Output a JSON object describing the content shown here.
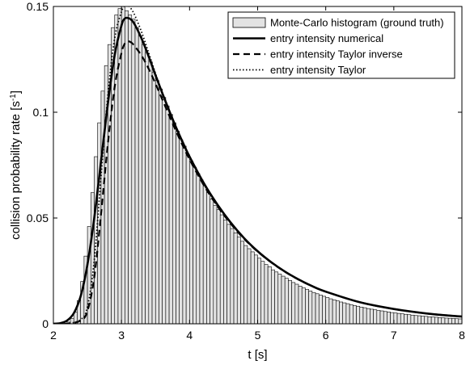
{
  "chart_data": {
    "type": "bar",
    "title": "",
    "xlabel": "t [s]",
    "ylabel": "collision probability rate [s",
    "ylabel_superscript": "-1",
    "ylabel_suffix": "]",
    "xlim": [
      2,
      8
    ],
    "ylim": [
      0,
      0.15
    ],
    "xticks": [
      2,
      3,
      4,
      5,
      6,
      7,
      8
    ],
    "xtick_labels": [
      "2",
      "3",
      "4",
      "5",
      "6",
      "7",
      "8"
    ],
    "yticks": [
      0,
      0.05,
      0.1,
      0.15
    ],
    "ytick_labels": [
      "0",
      "0.05",
      "0.1",
      "0.15"
    ],
    "grid": false,
    "legend_position": "top-right",
    "histogram": {
      "name": "Monte-Carlo histogram (ground truth)",
      "color": "#e3e3e3",
      "edge_color": "#000000",
      "bin_width": 0.05,
      "bin_starts": [
        2.2,
        2.25,
        2.3,
        2.35,
        2.4,
        2.45,
        2.5,
        2.55,
        2.6,
        2.65,
        2.7,
        2.75,
        2.8,
        2.85,
        2.9,
        2.95,
        3.0,
        3.05,
        3.1,
        3.15,
        3.2,
        3.25,
        3.3,
        3.35,
        3.4,
        3.45,
        3.5,
        3.55,
        3.6,
        3.65,
        3.7,
        3.75,
        3.8,
        3.85,
        3.9,
        3.95,
        4.0,
        4.05,
        4.1,
        4.15,
        4.2,
        4.25,
        4.3,
        4.35,
        4.4,
        4.45,
        4.5,
        4.55,
        4.6,
        4.65,
        4.7,
        4.75,
        4.8,
        4.85,
        4.9,
        4.95,
        5.0,
        5.05,
        5.1,
        5.15,
        5.2,
        5.25,
        5.3,
        5.35,
        5.4,
        5.45,
        5.5,
        5.55,
        5.6,
        5.65,
        5.7,
        5.75,
        5.8,
        5.85,
        5.9,
        5.95,
        6.0,
        6.05,
        6.1,
        6.15,
        6.2,
        6.25,
        6.3,
        6.35,
        6.4,
        6.45,
        6.5,
        6.55,
        6.6,
        6.65,
        6.7,
        6.75,
        6.8,
        6.85,
        6.9,
        6.95,
        7.0,
        7.05,
        7.1,
        7.15,
        7.2,
        7.25,
        7.3,
        7.35,
        7.4,
        7.45,
        7.5,
        7.55,
        7.6,
        7.65,
        7.7,
        7.75,
        7.8,
        7.85,
        7.9,
        7.95
      ],
      "values": [
        0.0008,
        0.0025,
        0.0055,
        0.011,
        0.02,
        0.032,
        0.046,
        0.062,
        0.079,
        0.095,
        0.11,
        0.122,
        0.132,
        0.14,
        0.146,
        0.149,
        0.15,
        0.148,
        0.146,
        0.144,
        0.14,
        0.136,
        0.132,
        0.128,
        0.124,
        0.119,
        0.115,
        0.111,
        0.107,
        0.103,
        0.099,
        0.095,
        0.091,
        0.087,
        0.084,
        0.08,
        0.077,
        0.074,
        0.071,
        0.068,
        0.065,
        0.062,
        0.059,
        0.056,
        0.054,
        0.0515,
        0.049,
        0.047,
        0.045,
        0.043,
        0.041,
        0.039,
        0.037,
        0.0355,
        0.034,
        0.0325,
        0.031,
        0.0295,
        0.028,
        0.027,
        0.0255,
        0.0245,
        0.0235,
        0.0225,
        0.0215,
        0.0205,
        0.0195,
        0.0187,
        0.0178,
        0.017,
        0.0163,
        0.0155,
        0.0148,
        0.0142,
        0.0136,
        0.013,
        0.0124,
        0.0118,
        0.0113,
        0.0108,
        0.0103,
        0.0099,
        0.0095,
        0.009,
        0.0086,
        0.0083,
        0.0079,
        0.0076,
        0.0072,
        0.0069,
        0.0066,
        0.0063,
        0.0061,
        0.0058,
        0.0056,
        0.0053,
        0.0051,
        0.0049,
        0.0047,
        0.0045,
        0.0043,
        0.0041,
        0.0039,
        0.0038,
        0.0036,
        0.0035,
        0.0033,
        0.0032,
        0.0031,
        0.0029,
        0.0028,
        0.0027,
        0.0026,
        0.0025,
        0.0024,
        0.0023
      ]
    },
    "series": [
      {
        "name": "entry intensity numerical",
        "style": "solid",
        "color": "#000000",
        "x": [
          2.0,
          2.1,
          2.2,
          2.3,
          2.4,
          2.5,
          2.6,
          2.7,
          2.8,
          2.9,
          3.0,
          3.05,
          3.1,
          3.15,
          3.2,
          3.3,
          3.4,
          3.5,
          3.6,
          3.7,
          3.8,
          3.9,
          4.0,
          4.2,
          4.4,
          4.6,
          4.8,
          5.0,
          5.2,
          5.4,
          5.6,
          5.8,
          6.0,
          6.5,
          7.0,
          7.5,
          8.0
        ],
        "y": [
          0.0,
          0.0003,
          0.0015,
          0.005,
          0.013,
          0.028,
          0.05,
          0.077,
          0.104,
          0.127,
          0.141,
          0.1443,
          0.1445,
          0.1435,
          0.1412,
          0.1345,
          0.1263,
          0.1175,
          0.109,
          0.1008,
          0.093,
          0.0858,
          0.079,
          0.067,
          0.0568,
          0.048,
          0.0405,
          0.0343,
          0.0291,
          0.0247,
          0.021,
          0.0178,
          0.0152,
          0.0102,
          0.007,
          0.0048,
          0.0034
        ]
      },
      {
        "name": "entry intensity Taylor inverse",
        "style": "dashed",
        "color": "#000000",
        "x": [
          2.0,
          2.2,
          2.4,
          2.5,
          2.6,
          2.7,
          2.8,
          2.9,
          3.0,
          3.05,
          3.1,
          3.15,
          3.2,
          3.3,
          3.4,
          3.5,
          3.6,
          3.7,
          3.8,
          3.9,
          4.0,
          4.2,
          4.4,
          4.6,
          4.8,
          5.0,
          5.2,
          5.4,
          5.6,
          5.8,
          6.0,
          6.5,
          7.0,
          7.5,
          8.0
        ],
        "y": [
          0.0,
          0.0,
          0.0015,
          0.006,
          0.022,
          0.052,
          0.085,
          0.112,
          0.128,
          0.1325,
          0.1335,
          0.1328,
          0.131,
          0.1265,
          0.1205,
          0.1135,
          0.106,
          0.0985,
          0.0912,
          0.0842,
          0.0777,
          0.066,
          0.056,
          0.0475,
          0.0402,
          0.0341,
          0.029,
          0.0246,
          0.0209,
          0.0178,
          0.0152,
          0.0102,
          0.007,
          0.0048,
          0.0034
        ]
      },
      {
        "name": "entry intensity Taylor",
        "style": "dotted",
        "color": "#000000",
        "x": [
          2.0,
          2.2,
          2.4,
          2.5,
          2.6,
          2.7,
          2.8,
          2.9,
          3.0,
          3.05,
          3.1,
          3.15,
          3.2,
          3.3,
          3.4,
          3.5,
          3.6,
          3.7,
          3.8,
          3.9,
          4.0,
          4.2,
          4.4,
          4.6,
          4.8,
          5.0,
          5.2,
          5.4,
          5.6,
          5.8,
          6.0,
          6.5,
          7.0,
          7.5,
          8.0
        ],
        "y": [
          0.0,
          0.0,
          0.002,
          0.008,
          0.03,
          0.07,
          0.108,
          0.135,
          0.1475,
          0.1505,
          0.1505,
          0.1485,
          0.1455,
          0.1375,
          0.128,
          0.1183,
          0.109,
          0.1005,
          0.0925,
          0.0852,
          0.0785,
          0.0665,
          0.0563,
          0.0477,
          0.0403,
          0.0342,
          0.029,
          0.0246,
          0.0209,
          0.0178,
          0.0152,
          0.0102,
          0.007,
          0.0048,
          0.0034
        ]
      }
    ]
  }
}
